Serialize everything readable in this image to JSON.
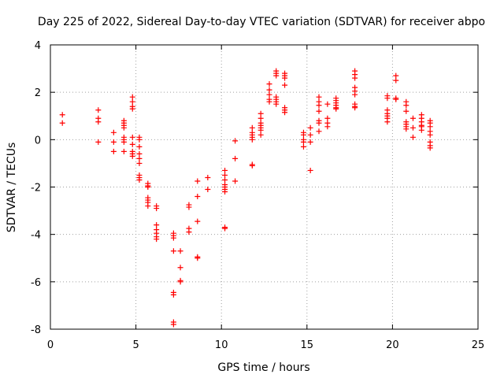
{
  "chart_data": {
    "type": "scatter",
    "title": "Day 225 of 2022, Sidereal Day-to-day VTEC variation (SDTVAR) for receiver abpo",
    "xlabel": "GPS time / hours",
    "ylabel": "SDTVAR / TECUs",
    "xlim": [
      0,
      25
    ],
    "ylim": [
      -8,
      4
    ],
    "xticks": [
      0,
      5,
      10,
      15,
      20,
      25
    ],
    "yticks": [
      -8,
      -6,
      -4,
      -2,
      0,
      2,
      4
    ],
    "xtick_labels": [
      "0",
      "5",
      "10",
      "15",
      "20",
      "25"
    ],
    "ytick_labels": [
      "-8",
      "-6",
      "-4",
      "-2",
      "0",
      "2",
      "4"
    ],
    "grid": true,
    "marker": "+",
    "color": "#ff0000",
    "series": [
      {
        "name": "SDTVAR",
        "points": [
          [
            0.7,
            1.05
          ],
          [
            0.7,
            0.7
          ],
          [
            2.8,
            1.25
          ],
          [
            2.8,
            0.9
          ],
          [
            2.8,
            0.75
          ],
          [
            2.8,
            -0.1
          ],
          [
            3.7,
            0.3
          ],
          [
            3.7,
            -0.1
          ],
          [
            3.7,
            -0.5
          ],
          [
            4.3,
            0.8
          ],
          [
            4.3,
            0.7
          ],
          [
            4.3,
            0.6
          ],
          [
            4.3,
            0.5
          ],
          [
            4.3,
            0.1
          ],
          [
            4.3,
            0.0
          ],
          [
            4.3,
            -0.1
          ],
          [
            4.3,
            -0.5
          ],
          [
            4.8,
            1.8
          ],
          [
            4.8,
            1.6
          ],
          [
            4.8,
            1.4
          ],
          [
            4.8,
            1.3
          ],
          [
            4.8,
            0.1
          ],
          [
            4.8,
            -0.2
          ],
          [
            4.8,
            -0.5
          ],
          [
            4.8,
            -0.6
          ],
          [
            4.8,
            -0.7
          ],
          [
            5.2,
            0.1
          ],
          [
            5.2,
            0.0
          ],
          [
            5.2,
            -0.3
          ],
          [
            5.2,
            -0.6
          ],
          [
            5.2,
            -0.8
          ],
          [
            5.2,
            -1.0
          ],
          [
            5.2,
            -1.5
          ],
          [
            5.2,
            -1.6
          ],
          [
            5.2,
            -1.7
          ],
          [
            5.7,
            -1.85
          ],
          [
            5.7,
            -1.95
          ],
          [
            5.7,
            -2.0
          ],
          [
            5.7,
            -2.45
          ],
          [
            5.7,
            -2.55
          ],
          [
            5.7,
            -2.65
          ],
          [
            5.7,
            -2.8
          ],
          [
            6.2,
            -2.8
          ],
          [
            6.2,
            -2.9
          ],
          [
            6.2,
            -3.6
          ],
          [
            6.2,
            -3.8
          ],
          [
            6.2,
            -3.95
          ],
          [
            6.2,
            -4.1
          ],
          [
            6.2,
            -4.2
          ],
          [
            7.2,
            -3.95
          ],
          [
            7.2,
            -4.05
          ],
          [
            7.2,
            -4.15
          ],
          [
            7.2,
            -4.7
          ],
          [
            7.2,
            -6.45
          ],
          [
            7.2,
            -6.55
          ],
          [
            7.2,
            -7.7
          ],
          [
            7.2,
            -7.8
          ],
          [
            7.6,
            -4.7
          ],
          [
            7.6,
            -5.4
          ],
          [
            7.6,
            -5.95
          ],
          [
            7.6,
            -6.0
          ],
          [
            8.1,
            -2.75
          ],
          [
            8.1,
            -2.85
          ],
          [
            8.1,
            -3.75
          ],
          [
            8.1,
            -3.9
          ],
          [
            8.6,
            -1.75
          ],
          [
            8.6,
            -2.4
          ],
          [
            8.6,
            -3.45
          ],
          [
            8.6,
            -4.95
          ],
          [
            8.6,
            -5.0
          ],
          [
            9.2,
            -1.6
          ],
          [
            9.2,
            -2.1
          ],
          [
            10.2,
            -1.3
          ],
          [
            10.2,
            -1.5
          ],
          [
            10.2,
            -1.7
          ],
          [
            10.2,
            -1.9
          ],
          [
            10.2,
            -2.0
          ],
          [
            10.2,
            -2.1
          ],
          [
            10.2,
            -2.2
          ],
          [
            10.2,
            -3.7
          ],
          [
            10.2,
            -3.75
          ],
          [
            10.8,
            -0.05
          ],
          [
            10.8,
            -0.8
          ],
          [
            10.8,
            -1.75
          ],
          [
            11.8,
            0.5
          ],
          [
            11.8,
            0.3
          ],
          [
            11.8,
            0.2
          ],
          [
            11.8,
            0.1
          ],
          [
            11.8,
            0.0
          ],
          [
            11.8,
            -1.05
          ],
          [
            11.8,
            -1.1
          ],
          [
            12.3,
            1.1
          ],
          [
            12.3,
            0.9
          ],
          [
            12.3,
            0.7
          ],
          [
            12.3,
            0.6
          ],
          [
            12.3,
            0.5
          ],
          [
            12.3,
            0.4
          ],
          [
            12.3,
            0.2
          ],
          [
            12.8,
            2.35
          ],
          [
            12.8,
            2.1
          ],
          [
            12.8,
            1.9
          ],
          [
            12.8,
            1.7
          ],
          [
            12.8,
            1.6
          ],
          [
            13.2,
            2.9
          ],
          [
            13.2,
            2.8
          ],
          [
            13.2,
            2.7
          ],
          [
            13.2,
            1.8
          ],
          [
            13.2,
            1.7
          ],
          [
            13.2,
            1.6
          ],
          [
            13.2,
            1.5
          ],
          [
            13.7,
            2.8
          ],
          [
            13.7,
            2.7
          ],
          [
            13.7,
            2.6
          ],
          [
            13.7,
            2.3
          ],
          [
            13.7,
            1.35
          ],
          [
            13.7,
            1.25
          ],
          [
            13.7,
            1.15
          ],
          [
            14.8,
            0.3
          ],
          [
            14.8,
            0.2
          ],
          [
            14.8,
            0.0
          ],
          [
            14.8,
            -0.1
          ],
          [
            14.8,
            -0.3
          ],
          [
            15.2,
            0.5
          ],
          [
            15.2,
            0.2
          ],
          [
            15.2,
            -0.1
          ],
          [
            15.2,
            -1.3
          ],
          [
            15.7,
            1.8
          ],
          [
            15.7,
            1.6
          ],
          [
            15.7,
            1.45
          ],
          [
            15.7,
            1.2
          ],
          [
            15.7,
            0.8
          ],
          [
            15.7,
            0.7
          ],
          [
            15.7,
            0.35
          ],
          [
            16.2,
            1.5
          ],
          [
            16.2,
            0.9
          ],
          [
            16.2,
            0.7
          ],
          [
            16.2,
            0.55
          ],
          [
            16.7,
            1.75
          ],
          [
            16.7,
            1.65
          ],
          [
            16.7,
            1.55
          ],
          [
            16.7,
            1.45
          ],
          [
            16.7,
            1.35
          ],
          [
            16.7,
            1.3
          ],
          [
            17.8,
            2.9
          ],
          [
            17.8,
            2.75
          ],
          [
            17.8,
            2.6
          ],
          [
            17.8,
            2.2
          ],
          [
            17.8,
            2.05
          ],
          [
            17.8,
            1.9
          ],
          [
            17.8,
            1.5
          ],
          [
            17.8,
            1.4
          ],
          [
            17.8,
            1.35
          ],
          [
            19.7,
            1.85
          ],
          [
            19.7,
            1.75
          ],
          [
            19.7,
            1.25
          ],
          [
            19.7,
            1.1
          ],
          [
            19.7,
            1.0
          ],
          [
            19.7,
            0.9
          ],
          [
            19.7,
            0.75
          ],
          [
            20.2,
            2.7
          ],
          [
            20.2,
            2.5
          ],
          [
            20.2,
            1.75
          ],
          [
            20.2,
            1.7
          ],
          [
            20.8,
            1.6
          ],
          [
            20.8,
            1.45
          ],
          [
            20.8,
            1.2
          ],
          [
            20.8,
            0.75
          ],
          [
            20.8,
            0.65
          ],
          [
            20.8,
            0.55
          ],
          [
            20.8,
            0.45
          ],
          [
            21.2,
            0.9
          ],
          [
            21.2,
            0.5
          ],
          [
            21.2,
            0.1
          ],
          [
            21.7,
            1.05
          ],
          [
            21.7,
            0.9
          ],
          [
            21.7,
            0.75
          ],
          [
            21.7,
            0.6
          ],
          [
            21.7,
            0.55
          ],
          [
            21.7,
            0.4
          ],
          [
            22.2,
            0.8
          ],
          [
            22.2,
            0.7
          ],
          [
            22.2,
            0.55
          ],
          [
            22.2,
            0.35
          ],
          [
            22.2,
            0.2
          ],
          [
            22.2,
            -0.1
          ],
          [
            22.2,
            -0.25
          ],
          [
            22.2,
            -0.35
          ]
        ]
      }
    ]
  }
}
